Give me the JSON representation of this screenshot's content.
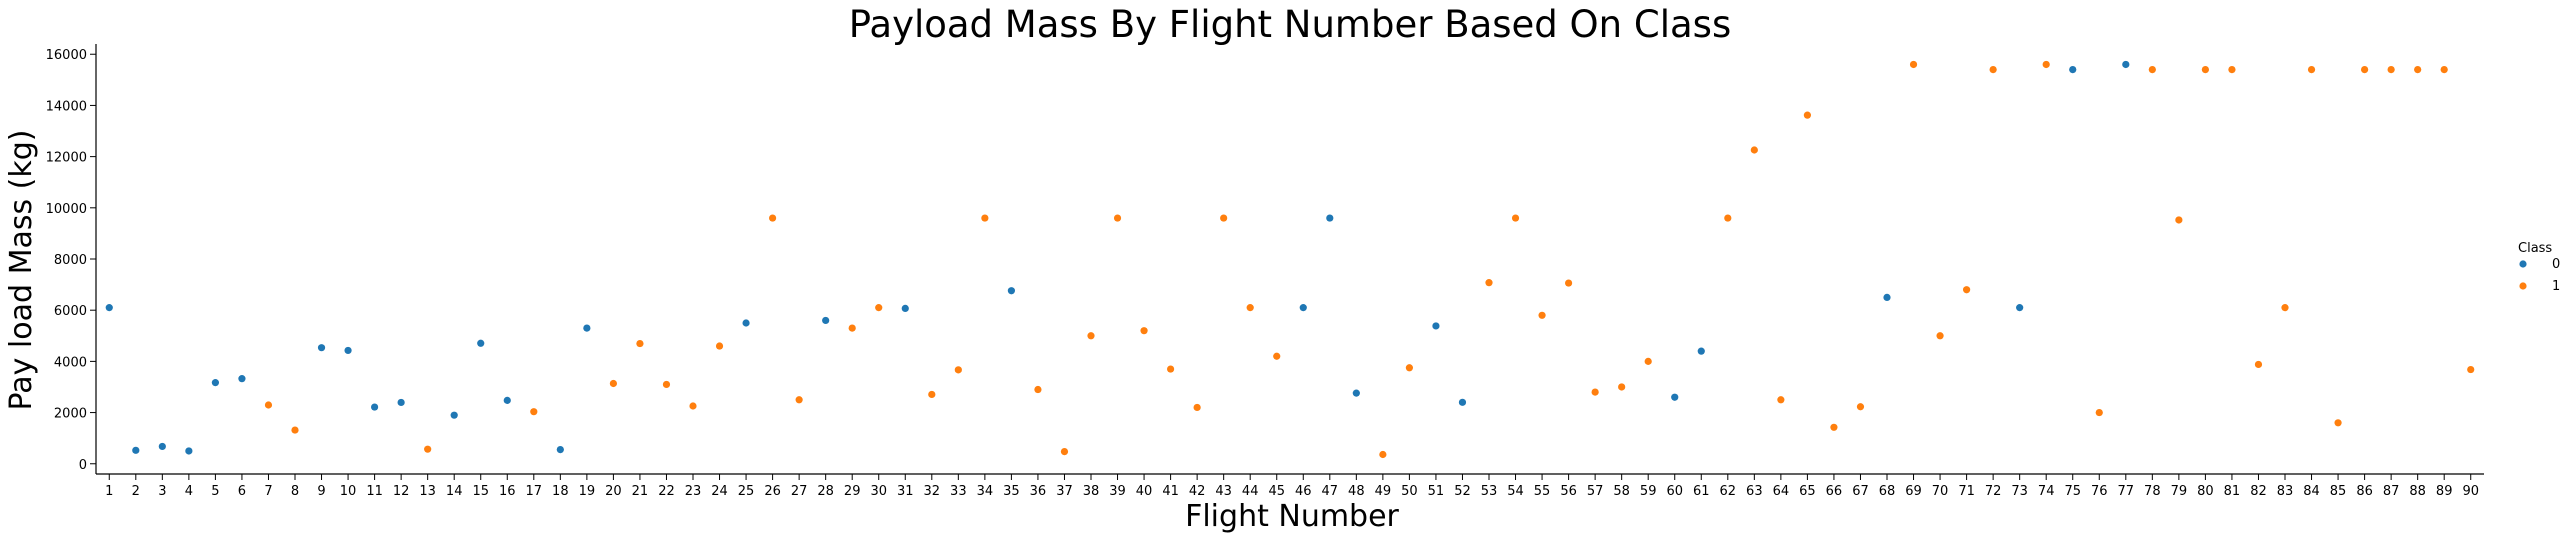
{
  "chart_data": {
    "type": "scatter",
    "title": "Payload Mass By Flight Number Based On Class",
    "xlabel": "Flight Number",
    "ylabel": "Pay load Mass (kg)",
    "ylim": [
      -400,
      16400
    ],
    "yticks": [
      0,
      2000,
      4000,
      6000,
      8000,
      10000,
      12000,
      14000,
      16000
    ],
    "x": [
      1,
      2,
      3,
      4,
      5,
      6,
      7,
      8,
      9,
      10,
      11,
      12,
      13,
      14,
      15,
      16,
      17,
      18,
      19,
      20,
      21,
      22,
      23,
      24,
      25,
      26,
      27,
      28,
      29,
      30,
      31,
      32,
      33,
      34,
      35,
      36,
      37,
      38,
      39,
      40,
      41,
      42,
      43,
      44,
      45,
      46,
      47,
      48,
      49,
      50,
      51,
      52,
      53,
      54,
      55,
      56,
      57,
      58,
      59,
      60,
      61,
      62,
      63,
      64,
      65,
      66,
      67,
      68,
      69,
      70,
      71,
      72,
      73,
      74,
      75,
      76,
      77,
      78,
      79,
      80,
      81,
      82,
      83,
      84,
      85,
      86,
      87,
      88,
      89,
      90
    ],
    "grid": false,
    "legend": {
      "title": "Class",
      "position": "right",
      "entries": [
        "0",
        "1"
      ]
    },
    "series": [
      {
        "name": "0",
        "color": "#1f77b4",
        "points": [
          [
            1,
            6100
          ],
          [
            2,
            525
          ],
          [
            3,
            677
          ],
          [
            4,
            500
          ],
          [
            5,
            3170
          ],
          [
            6,
            3325
          ],
          [
            9,
            4535
          ],
          [
            10,
            4428
          ],
          [
            11,
            2216
          ],
          [
            12,
            2395
          ],
          [
            14,
            1898
          ],
          [
            15,
            4707
          ],
          [
            16,
            2477
          ],
          [
            18,
            553
          ],
          [
            19,
            5300
          ],
          [
            25,
            5500
          ],
          [
            28,
            5600
          ],
          [
            31,
            6070
          ],
          [
            35,
            6761
          ],
          [
            46,
            6100
          ],
          [
            47,
            9600
          ],
          [
            48,
            2760
          ],
          [
            51,
            5384
          ],
          [
            52,
            2400
          ],
          [
            60,
            2600
          ],
          [
            61,
            4400
          ],
          [
            68,
            6500
          ],
          [
            73,
            6100
          ],
          [
            75,
            15400
          ],
          [
            77,
            15600
          ]
        ]
      },
      {
        "name": "1",
        "color": "#ff7f0e",
        "points": [
          [
            7,
            2296
          ],
          [
            8,
            1316
          ],
          [
            13,
            570
          ],
          [
            17,
            2034
          ],
          [
            20,
            3136
          ],
          [
            21,
            4696
          ],
          [
            22,
            3100
          ],
          [
            23,
            2257
          ],
          [
            24,
            4600
          ],
          [
            26,
            9600
          ],
          [
            27,
            2500
          ],
          [
            29,
            5300
          ],
          [
            30,
            6100
          ],
          [
            32,
            2708
          ],
          [
            33,
            3669
          ],
          [
            34,
            9600
          ],
          [
            36,
            2900
          ],
          [
            37,
            475
          ],
          [
            38,
            5000
          ],
          [
            39,
            9600
          ],
          [
            40,
            5200
          ],
          [
            41,
            3700
          ],
          [
            42,
            2200
          ],
          [
            43,
            9600
          ],
          [
            44,
            6100
          ],
          [
            45,
            4200
          ],
          [
            49,
            362
          ],
          [
            50,
            3750
          ],
          [
            53,
            7076
          ],
          [
            54,
            9600
          ],
          [
            55,
            5800
          ],
          [
            56,
            7060
          ],
          [
            57,
            2800
          ],
          [
            58,
            3000
          ],
          [
            59,
            4000
          ],
          [
            62,
            9600
          ],
          [
            63,
            12259
          ],
          [
            64,
            2500
          ],
          [
            65,
            13620
          ],
          [
            66,
            1425
          ],
          [
            67,
            2227
          ],
          [
            69,
            15600
          ],
          [
            70,
            5000
          ],
          [
            71,
            6800
          ],
          [
            72,
            15400
          ],
          [
            74,
            15600
          ],
          [
            76,
            2000
          ],
          [
            78,
            15400
          ],
          [
            79,
            9525
          ],
          [
            80,
            15400
          ],
          [
            81,
            15400
          ],
          [
            82,
            3880
          ],
          [
            83,
            6100
          ],
          [
            84,
            15400
          ],
          [
            85,
            1600
          ],
          [
            86,
            15400
          ],
          [
            87,
            15400
          ],
          [
            88,
            15400
          ],
          [
            89,
            15400
          ],
          [
            90,
            3681
          ]
        ]
      }
    ]
  }
}
